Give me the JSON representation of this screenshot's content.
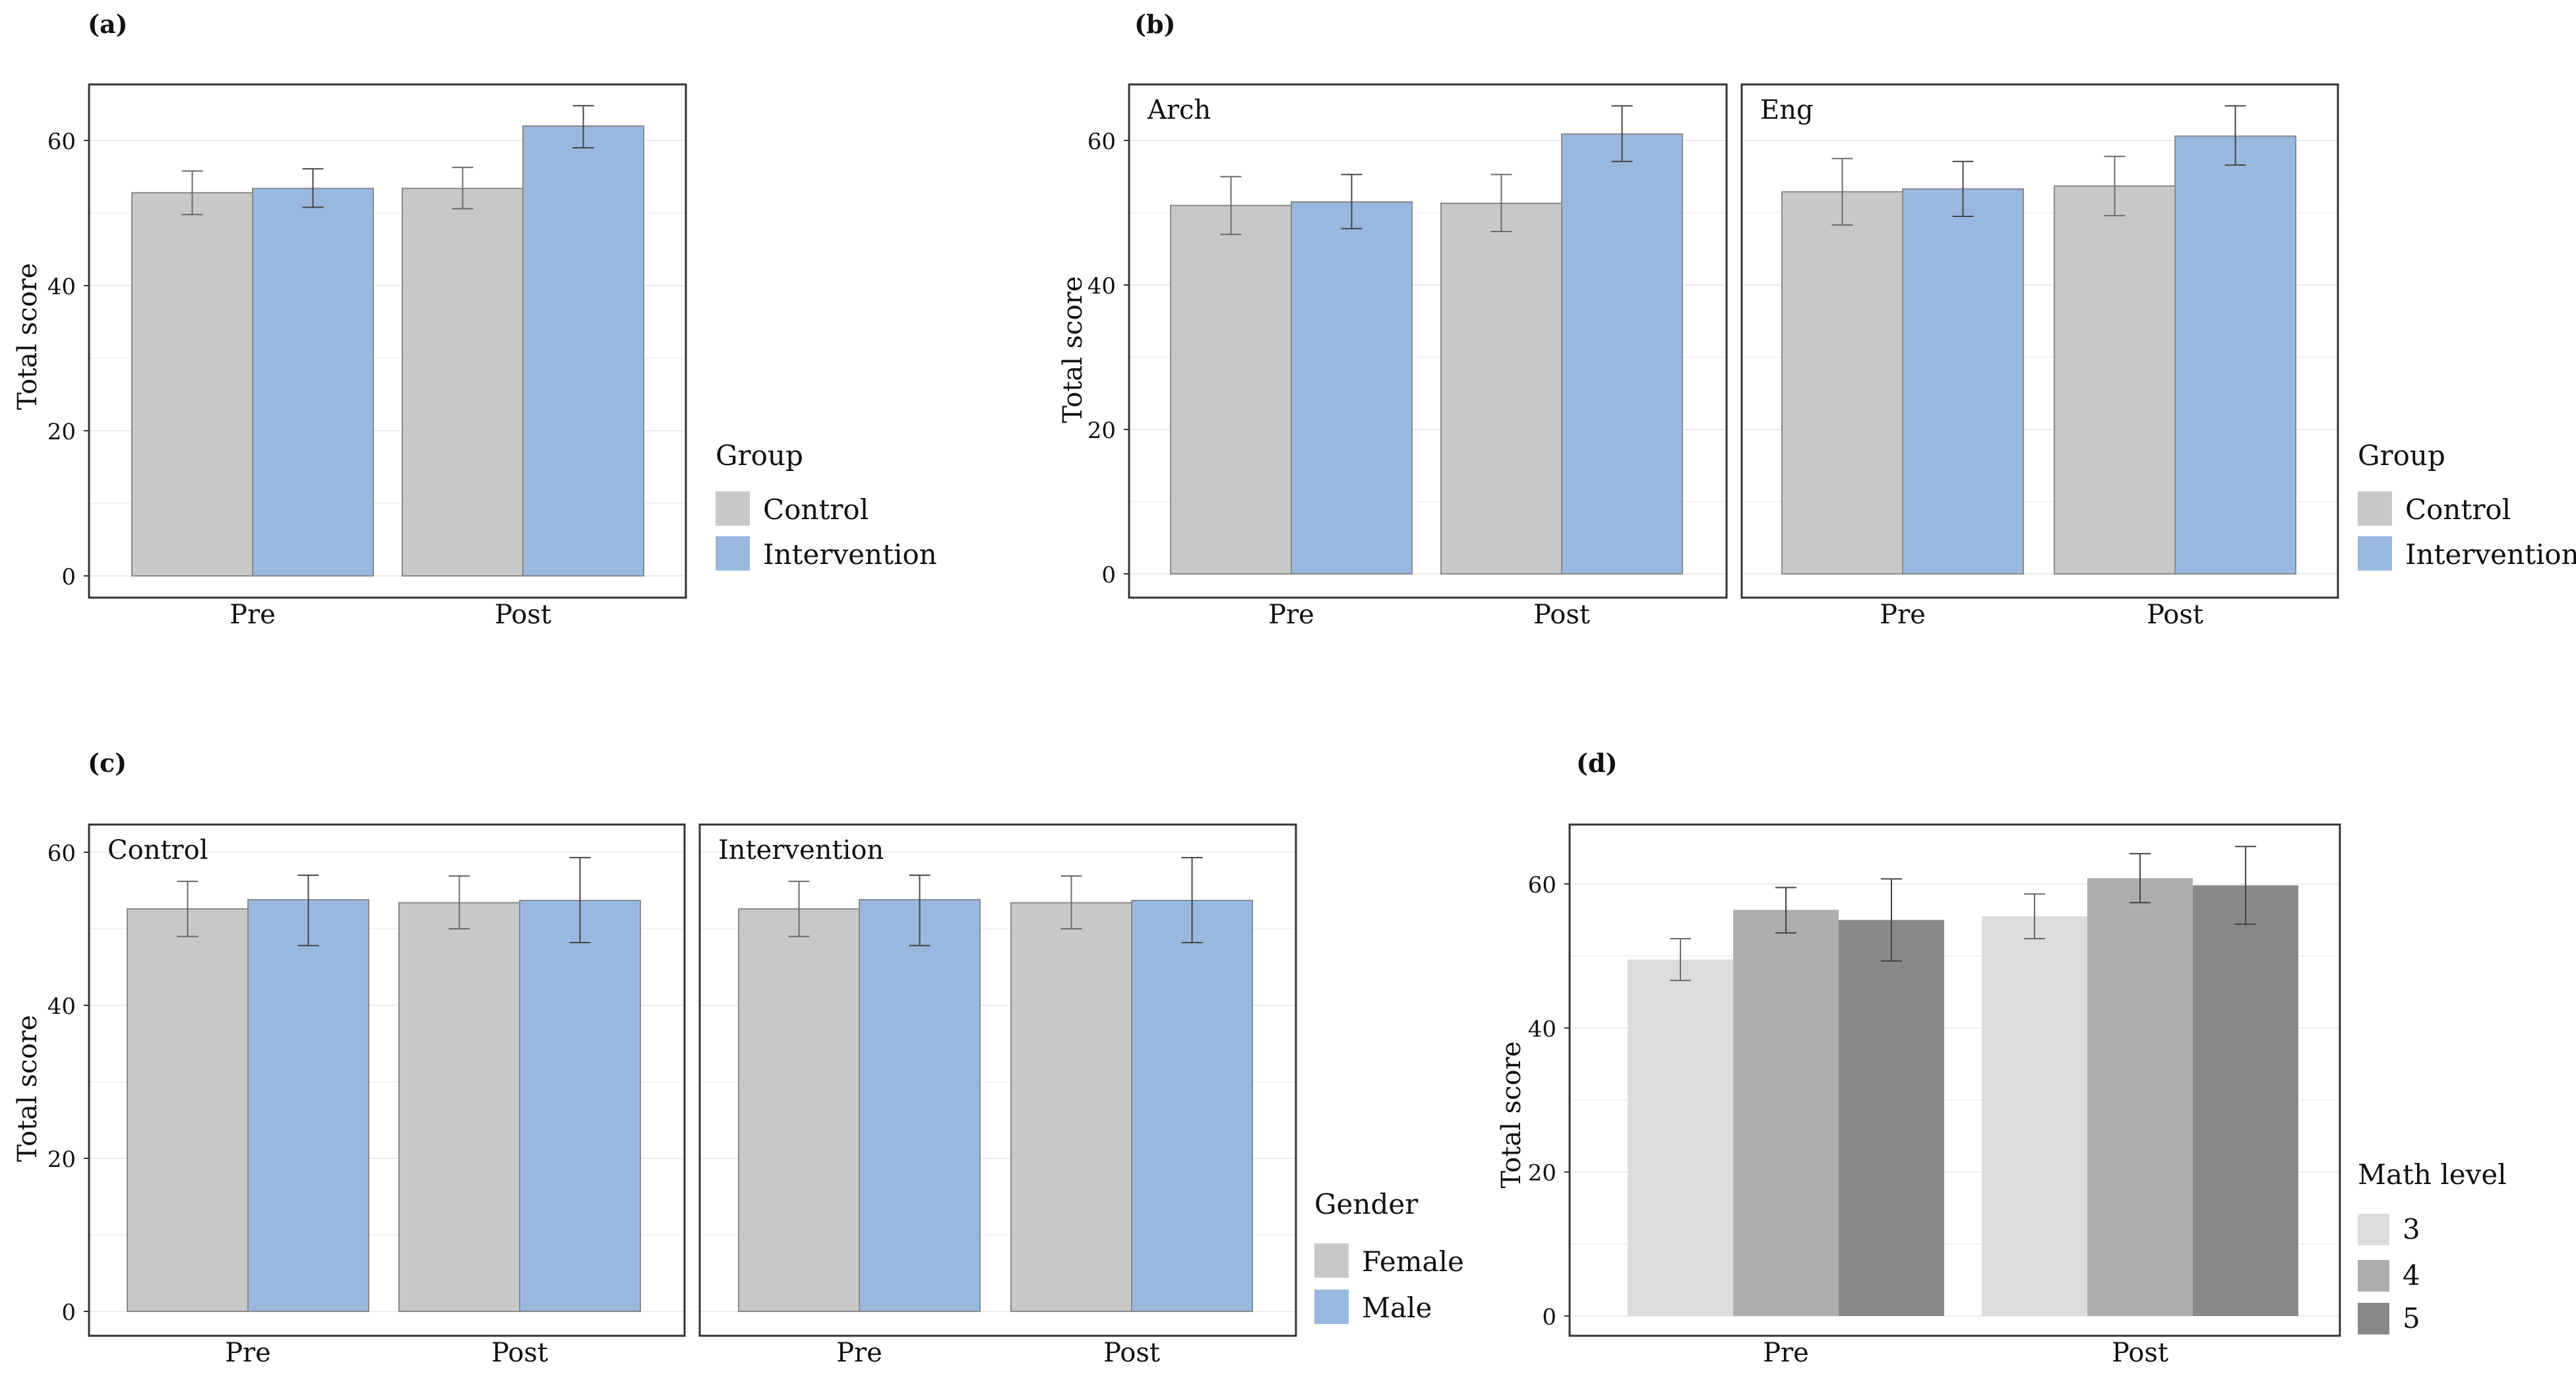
{
  "chart_data": [
    {
      "panel": "(a)",
      "type": "bar",
      "ylabel": "Total score",
      "ylim": [
        0,
        65
      ],
      "yticks": [
        0,
        20,
        40,
        60
      ],
      "categories": [
        "Pre",
        "Post"
      ],
      "legend": {
        "title": "Group",
        "position": "right"
      },
      "facets": [
        {
          "title": "",
          "series": [
            {
              "name": "Control",
              "color": "#C8C8C8",
              "values": [
                52.8,
                53.4
              ],
              "err_low": [
                49.8,
                50.6
              ],
              "err_high": [
                55.8,
                56.3
              ]
            },
            {
              "name": "Intervention",
              "color": "#98B8DF",
              "values": [
                53.4,
                62.0
              ],
              "err_low": [
                50.8,
                59.0
              ],
              "err_high": [
                56.1,
                64.8
              ]
            }
          ]
        }
      ]
    },
    {
      "panel": "(b)",
      "type": "bar",
      "ylabel": "Total score",
      "ylim": [
        0,
        65
      ],
      "yticks": [
        0,
        20,
        40,
        60
      ],
      "categories": [
        "Pre",
        "Post"
      ],
      "legend": {
        "title": "Group",
        "position": "right"
      },
      "facets": [
        {
          "title": "Arch",
          "series": [
            {
              "name": "Control",
              "color": "#C8C8C8",
              "values": [
                51.0,
                51.3
              ],
              "err_low": [
                47.0,
                47.4
              ],
              "err_high": [
                55.0,
                55.3
              ]
            },
            {
              "name": "Intervention",
              "color": "#98B8DF",
              "values": [
                51.5,
                60.9
              ],
              "err_low": [
                47.8,
                57.1
              ],
              "err_high": [
                55.3,
                64.8
              ]
            }
          ]
        },
        {
          "title": "Eng",
          "series": [
            {
              "name": "Control",
              "color": "#C8C8C8",
              "values": [
                52.9,
                53.7
              ],
              "err_low": [
                48.3,
                49.6
              ],
              "err_high": [
                57.5,
                57.8
              ]
            },
            {
              "name": "Intervention",
              "color": "#98B8DF",
              "values": [
                53.3,
                60.6
              ],
              "err_low": [
                49.5,
                56.6
              ],
              "err_high": [
                57.1,
                64.8
              ]
            }
          ]
        }
      ]
    },
    {
      "panel": "(c)",
      "type": "bar",
      "ylabel": "Total score",
      "ylim": [
        0,
        63
      ],
      "yticks": [
        0,
        20,
        40,
        60
      ],
      "categories": [
        "Pre",
        "Post"
      ],
      "legend": {
        "title": "Gender",
        "position": "right"
      },
      "facets": [
        {
          "title": "Control",
          "series": [
            {
              "name": "Female",
              "color": "#C8C8C8",
              "values": [
                52.6,
                53.4
              ],
              "err_low": [
                49.0,
                50.0
              ],
              "err_high": [
                56.2,
                56.9
              ]
            },
            {
              "name": "Male",
              "color": "#98B8DF",
              "values": [
                53.8,
                53.7
              ],
              "err_low": [
                47.8,
                48.2
              ],
              "err_high": [
                57.0,
                59.3
              ]
            }
          ]
        },
        {
          "title": "Intervention",
          "series": [
            {
              "name": "Female",
              "color": "#C8C8C8",
              "values": [
                52.6,
                53.4
              ],
              "err_low": [
                49.0,
                50.0
              ],
              "err_high": [
                56.2,
                56.9
              ]
            },
            {
              "name": "Male",
              "color": "#98B8DF",
              "values": [
                53.8,
                53.7
              ],
              "err_low": [
                47.8,
                48.2
              ],
              "err_high": [
                57.0,
                59.3
              ]
            }
          ]
        }
      ]
    },
    {
      "panel": "(d)",
      "type": "bar",
      "ylabel": "Total score",
      "ylim": [
        0,
        67
      ],
      "yticks": [
        0,
        20,
        40,
        60
      ],
      "categories": [
        "Pre",
        "Post"
      ],
      "legend": {
        "title": "Math level",
        "position": "right"
      },
      "facets": [
        {
          "title": "",
          "series": [
            {
              "name": "3",
              "color": "#DCDCDC",
              "values": [
                49.5,
                55.5
              ],
              "err_low": [
                46.6,
                52.4
              ],
              "err_high": [
                52.4,
                58.6
              ]
            },
            {
              "name": "4",
              "color": "#AEAEAE",
              "values": [
                56.4,
                60.8
              ],
              "err_low": [
                53.2,
                57.4
              ],
              "err_high": [
                59.5,
                64.2
              ]
            },
            {
              "name": "5",
              "color": "#888888",
              "values": [
                55.0,
                59.8
              ],
              "err_low": [
                49.3,
                54.4
              ],
              "err_high": [
                60.7,
                65.2
              ]
            }
          ]
        }
      ]
    }
  ]
}
